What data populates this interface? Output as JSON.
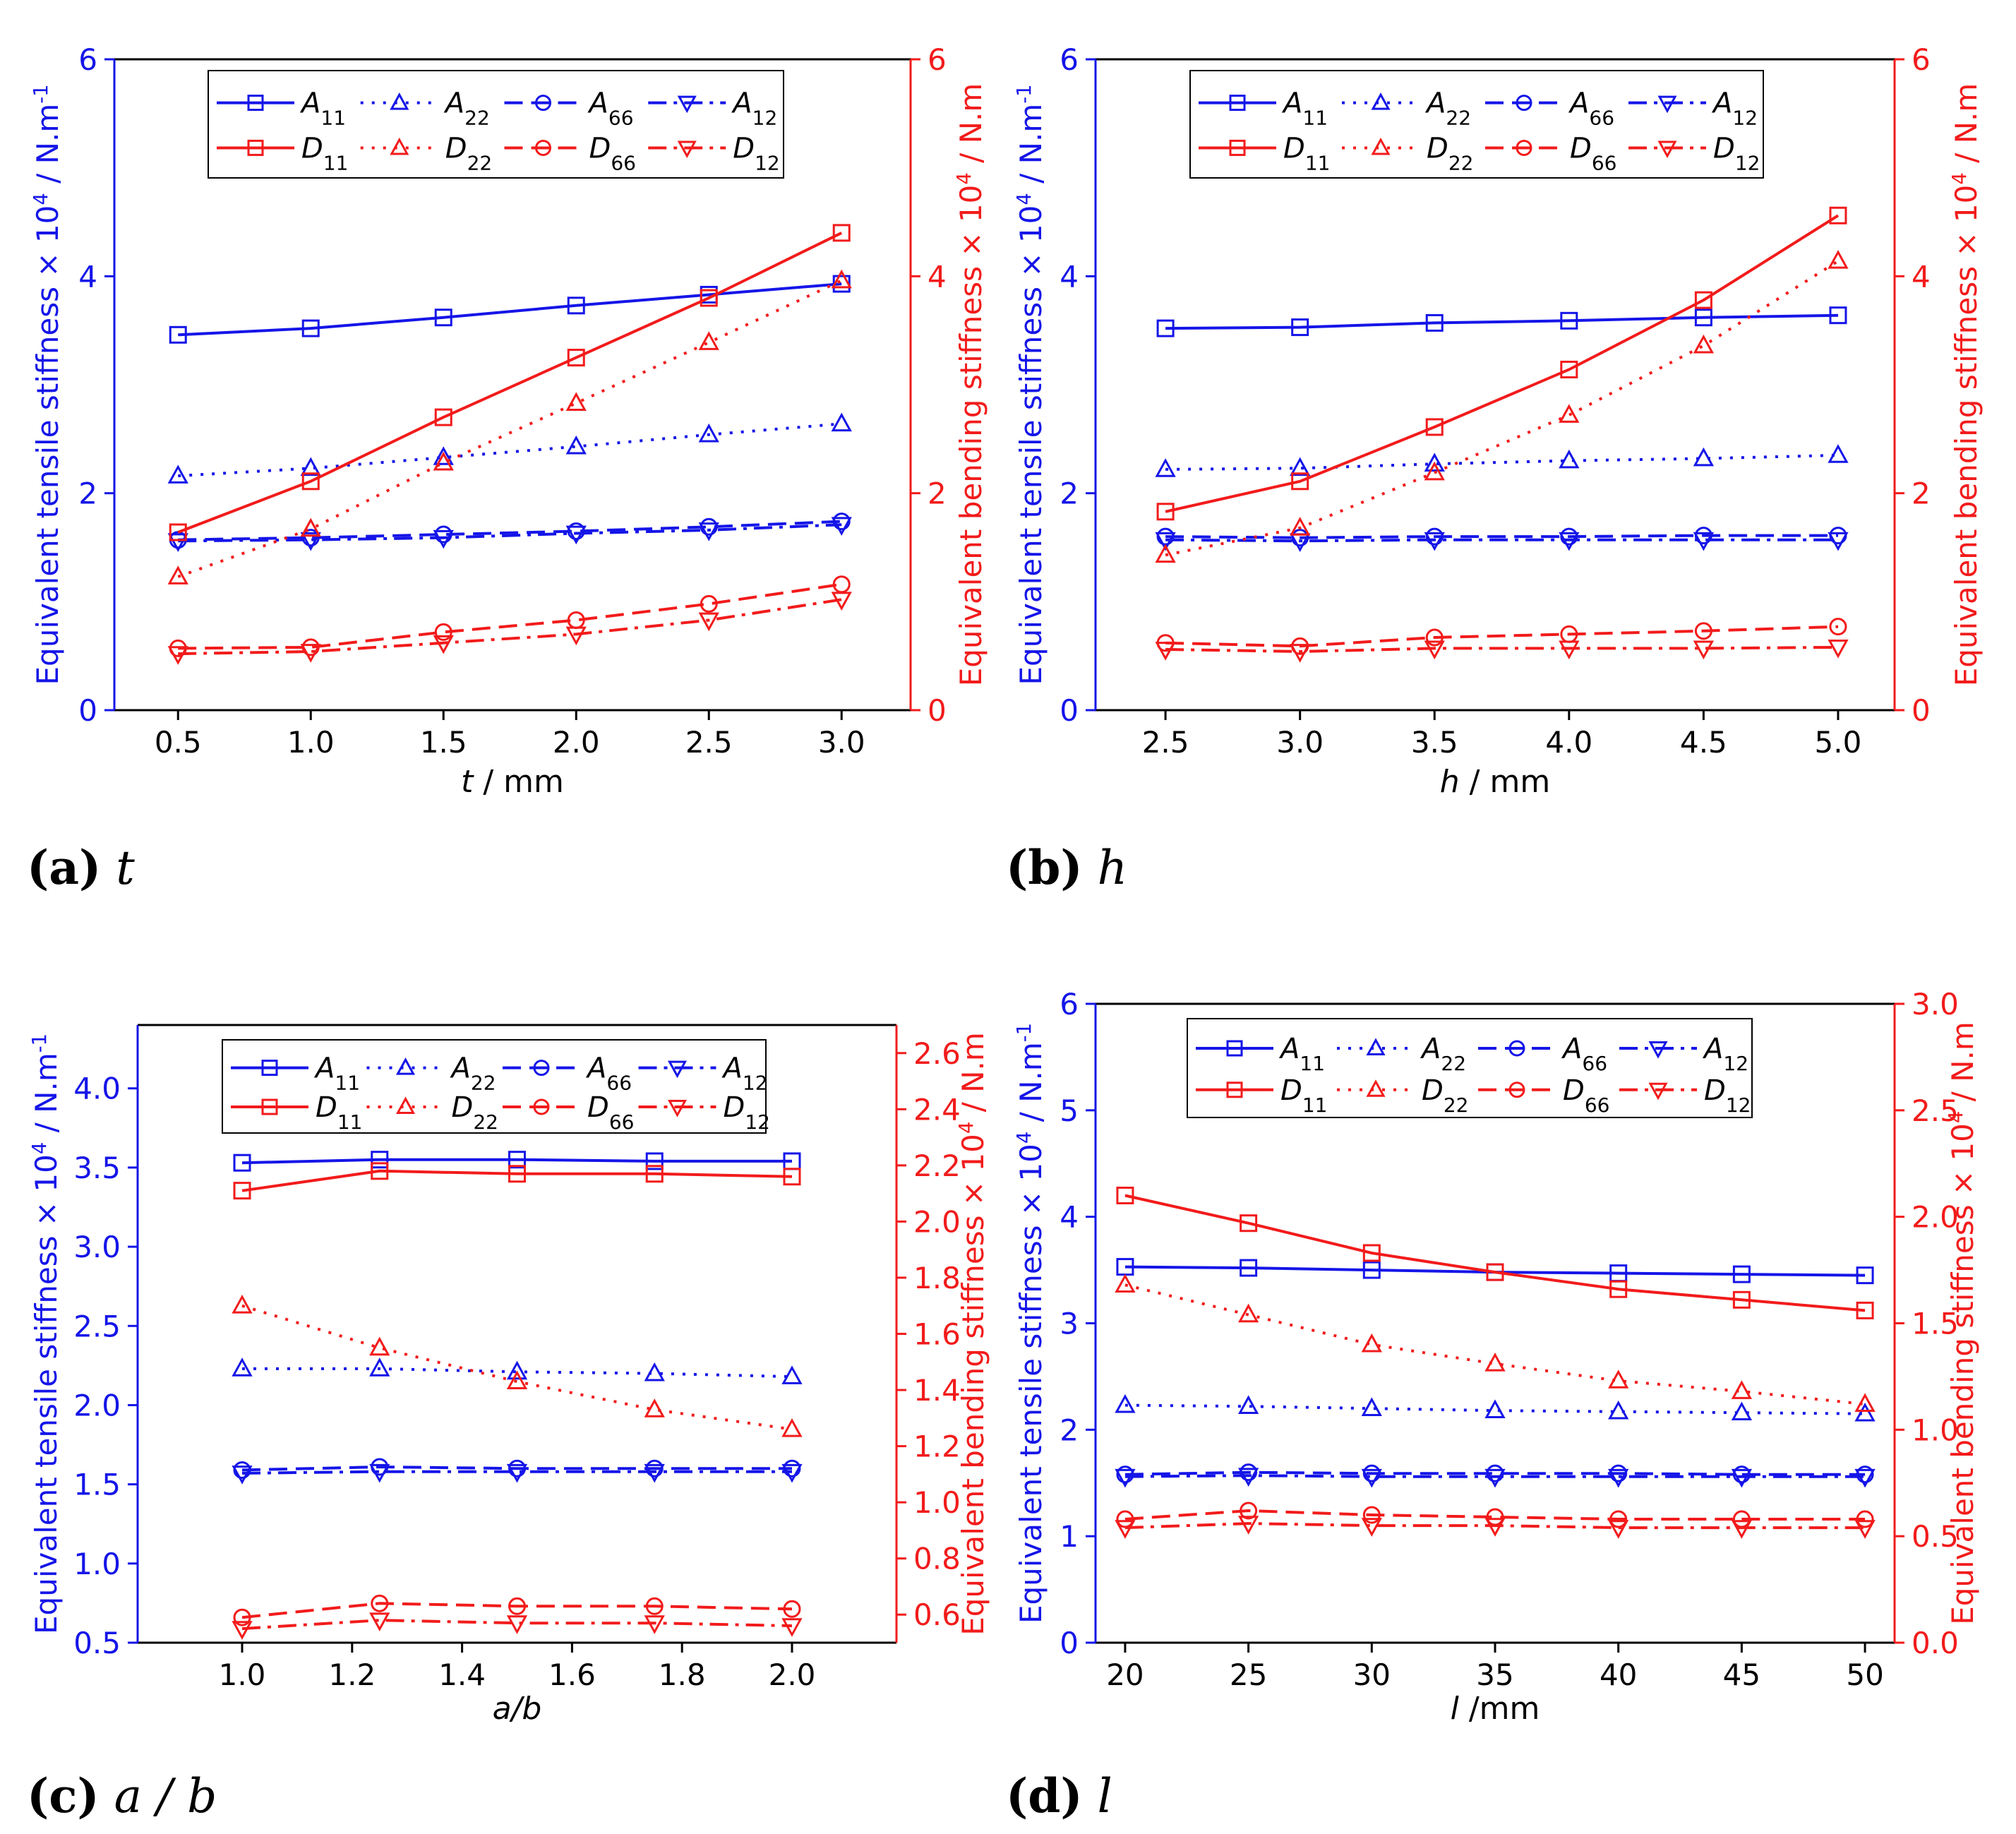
{
  "colors": {
    "blue": "#1515e8",
    "red": "#f21b1b",
    "axis": "#000000"
  },
  "captions": [
    {
      "letter": "(a)",
      "var": "t"
    },
    {
      "letter": "(b)",
      "var": "h"
    },
    {
      "letter": "(c)",
      "var": "a / b"
    },
    {
      "letter": "(d)",
      "var": "l"
    }
  ],
  "legend": [
    {
      "base": "A",
      "sub": "11",
      "style": "solid",
      "marker": "square",
      "color": "blue"
    },
    {
      "base": "A",
      "sub": "22",
      "style": "dot",
      "marker": "triangle",
      "color": "blue"
    },
    {
      "base": "A",
      "sub": "66",
      "style": "dash",
      "marker": "circle",
      "color": "blue"
    },
    {
      "base": "A",
      "sub": "12",
      "style": "dashdot",
      "marker": "tridown",
      "color": "blue"
    },
    {
      "base": "D",
      "sub": "11",
      "style": "solid",
      "marker": "square",
      "color": "red"
    },
    {
      "base": "D",
      "sub": "22",
      "style": "dot",
      "marker": "triangle",
      "color": "red"
    },
    {
      "base": "D",
      "sub": "66",
      "style": "dash",
      "marker": "circle",
      "color": "red"
    },
    {
      "base": "D",
      "sub": "12",
      "style": "dashdot",
      "marker": "tridown",
      "color": "red"
    }
  ],
  "chart_data": [
    {
      "type": "line",
      "panel": "a",
      "ylabel_left": "Equivalent tensile stiffness × 10⁴ / N.m⁻¹",
      "ylabel_right": "Equivalent bending stiffness × 10⁴ / N.m",
      "xlabel_var": "t",
      "xlabel_unit": " / mm",
      "xlim": [
        0.26,
        3.26
      ],
      "ylim_left": [
        0,
        6
      ],
      "ylim_right": [
        0,
        6
      ],
      "xticks": [
        0.5,
        1.0,
        1.5,
        2.0,
        2.5,
        3.0
      ],
      "xtick_decimals": 1,
      "yticks_left": [
        0,
        2,
        4,
        6
      ],
      "ytick_decimals_left": 0,
      "yticks_right": [
        0,
        2,
        4,
        6
      ],
      "ytick_decimals_right": 0,
      "x": [
        0.5,
        1.0,
        1.5,
        2.0,
        2.5,
        3.0
      ],
      "series": [
        {
          "name": "A11",
          "axis": "left",
          "values": [
            3.46,
            3.52,
            3.62,
            3.73,
            3.83,
            3.93
          ]
        },
        {
          "name": "A22",
          "axis": "left",
          "values": [
            2.16,
            2.23,
            2.33,
            2.43,
            2.54,
            2.64
          ]
        },
        {
          "name": "A66",
          "axis": "left",
          "values": [
            1.57,
            1.59,
            1.62,
            1.65,
            1.69,
            1.74
          ]
        },
        {
          "name": "A12",
          "axis": "left",
          "values": [
            1.56,
            1.57,
            1.59,
            1.63,
            1.66,
            1.71
          ]
        },
        {
          "name": "D11",
          "axis": "right",
          "values": [
            1.64,
            2.11,
            2.7,
            3.25,
            3.8,
            4.4
          ]
        },
        {
          "name": "D22",
          "axis": "right",
          "values": [
            1.23,
            1.67,
            2.28,
            2.83,
            3.39,
            3.96
          ]
        },
        {
          "name": "D66",
          "axis": "right",
          "values": [
            0.57,
            0.58,
            0.72,
            0.83,
            0.98,
            1.16
          ]
        },
        {
          "name": "D12",
          "axis": "right",
          "values": [
            0.52,
            0.54,
            0.62,
            0.7,
            0.83,
            1.02
          ]
        }
      ]
    },
    {
      "type": "line",
      "panel": "b",
      "ylabel_left": "Equivalent tensile stiffness × 10⁴ / N.m⁻¹",
      "ylabel_right": "Equivalent bending stiffness × 10⁴ / N.m",
      "xlabel_var": "h",
      "xlabel_unit": " / mm",
      "xlim": [
        2.24,
        5.21
      ],
      "ylim_left": [
        0,
        6
      ],
      "ylim_right": [
        0,
        6
      ],
      "xticks": [
        2.5,
        3.0,
        3.5,
        4.0,
        4.5,
        5.0
      ],
      "xtick_decimals": 1,
      "yticks_left": [
        0,
        2,
        4,
        6
      ],
      "ytick_decimals_left": 0,
      "yticks_right": [
        0,
        2,
        4,
        6
      ],
      "ytick_decimals_right": 0,
      "x": [
        2.5,
        3.0,
        3.5,
        4.0,
        4.5,
        5.0
      ],
      "series": [
        {
          "name": "A11",
          "axis": "left",
          "values": [
            3.52,
            3.53,
            3.57,
            3.59,
            3.62,
            3.64
          ]
        },
        {
          "name": "A22",
          "axis": "left",
          "values": [
            2.22,
            2.23,
            2.27,
            2.3,
            2.32,
            2.35
          ]
        },
        {
          "name": "A66",
          "axis": "left",
          "values": [
            1.6,
            1.59,
            1.6,
            1.6,
            1.61,
            1.61
          ]
        },
        {
          "name": "A12",
          "axis": "left",
          "values": [
            1.57,
            1.56,
            1.57,
            1.57,
            1.57,
            1.57
          ]
        },
        {
          "name": "D11",
          "axis": "right",
          "values": [
            1.83,
            2.11,
            2.61,
            3.14,
            3.78,
            4.56
          ]
        },
        {
          "name": "D22",
          "axis": "right",
          "values": [
            1.43,
            1.68,
            2.19,
            2.72,
            3.36,
            4.14
          ]
        },
        {
          "name": "D66",
          "axis": "right",
          "values": [
            0.62,
            0.59,
            0.67,
            0.7,
            0.73,
            0.77
          ]
        },
        {
          "name": "D12",
          "axis": "right",
          "values": [
            0.56,
            0.54,
            0.57,
            0.57,
            0.57,
            0.58
          ]
        }
      ]
    },
    {
      "type": "line",
      "panel": "c",
      "ylabel_left": "Equivalent tensile stiffness × 10⁴ / N.m⁻¹",
      "ylabel_right": "Equivalent bending stiffness × 10⁴ / N.m",
      "xlabel_var": "a/b",
      "xlabel_unit": "",
      "xlim": [
        0.81,
        2.19
      ],
      "ylim_left": [
        0.5,
        4.4
      ],
      "ylim_right": [
        0.5,
        2.7
      ],
      "xticks": [
        1.0,
        1.2,
        1.4,
        1.6,
        1.8,
        2.0
      ],
      "xtick_decimals": 1,
      "yticks_left": [
        0.5,
        1.0,
        1.5,
        2.0,
        2.5,
        3.0,
        3.5,
        4.0
      ],
      "ytick_decimals_left": 1,
      "yticks_right": [
        0.6,
        0.8,
        1.0,
        1.2,
        1.4,
        1.6,
        1.8,
        2.0,
        2.2,
        2.4,
        2.6
      ],
      "ytick_decimals_right": 1,
      "x": [
        1.0,
        1.25,
        1.5,
        1.75,
        2.0
      ],
      "series": [
        {
          "name": "A11",
          "axis": "left",
          "values": [
            3.53,
            3.55,
            3.55,
            3.54,
            3.54
          ]
        },
        {
          "name": "A22",
          "axis": "left",
          "values": [
            2.23,
            2.23,
            2.21,
            2.2,
            2.18
          ]
        },
        {
          "name": "A66",
          "axis": "left",
          "values": [
            1.59,
            1.61,
            1.6,
            1.6,
            1.6
          ]
        },
        {
          "name": "A12",
          "axis": "left",
          "values": [
            1.57,
            1.58,
            1.58,
            1.58,
            1.58
          ]
        },
        {
          "name": "D11",
          "axis": "right",
          "values": [
            2.11,
            2.18,
            2.17,
            2.17,
            2.16
          ]
        },
        {
          "name": "D22",
          "axis": "right",
          "values": [
            1.7,
            1.55,
            1.43,
            1.33,
            1.26
          ]
        },
        {
          "name": "D66",
          "axis": "right",
          "values": [
            0.59,
            0.64,
            0.63,
            0.63,
            0.62
          ]
        },
        {
          "name": "D12",
          "axis": "right",
          "values": [
            0.55,
            0.58,
            0.57,
            0.57,
            0.56
          ]
        }
      ]
    },
    {
      "type": "line",
      "panel": "d",
      "ylabel_left": "Equivalent tensile stiffness × 10⁴ / N.m⁻¹",
      "ylabel_right": "Equivalent bending stiffness × 10⁴ / N.m",
      "xlabel_var": "l",
      "xlabel_unit": " /mm",
      "xlim": [
        18.8,
        51.2
      ],
      "ylim_left": [
        0,
        6
      ],
      "ylim_right": [
        0,
        3
      ],
      "xticks": [
        20,
        25,
        30,
        35,
        40,
        45,
        50
      ],
      "xtick_decimals": 0,
      "yticks_left": [
        0,
        1,
        2,
        3,
        4,
        5,
        6
      ],
      "ytick_decimals_left": 0,
      "yticks_right": [
        0.0,
        0.5,
        1.0,
        1.5,
        2.0,
        2.5,
        3.0
      ],
      "ytick_decimals_right": 1,
      "x": [
        20,
        25,
        30,
        35,
        40,
        45,
        50
      ],
      "series": [
        {
          "name": "A11",
          "axis": "left",
          "values": [
            3.53,
            3.52,
            3.5,
            3.48,
            3.47,
            3.46,
            3.45
          ]
        },
        {
          "name": "A22",
          "axis": "left",
          "values": [
            2.23,
            2.22,
            2.2,
            2.18,
            2.17,
            2.16,
            2.15
          ]
        },
        {
          "name": "A66",
          "axis": "left",
          "values": [
            1.58,
            1.6,
            1.59,
            1.59,
            1.59,
            1.58,
            1.58
          ]
        },
        {
          "name": "A12",
          "axis": "left",
          "values": [
            1.56,
            1.57,
            1.56,
            1.56,
            1.56,
            1.56,
            1.56
          ]
        },
        {
          "name": "D11",
          "axis": "right",
          "values": [
            2.1,
            1.97,
            1.83,
            1.74,
            1.66,
            1.61,
            1.56
          ]
        },
        {
          "name": "D22",
          "axis": "right",
          "values": [
            1.68,
            1.54,
            1.4,
            1.31,
            1.23,
            1.18,
            1.12
          ]
        },
        {
          "name": "D66",
          "axis": "right",
          "values": [
            0.58,
            0.62,
            0.6,
            0.59,
            0.58,
            0.58,
            0.58
          ]
        },
        {
          "name": "D12",
          "axis": "right",
          "values": [
            0.54,
            0.56,
            0.55,
            0.55,
            0.54,
            0.54,
            0.54
          ]
        }
      ]
    }
  ]
}
